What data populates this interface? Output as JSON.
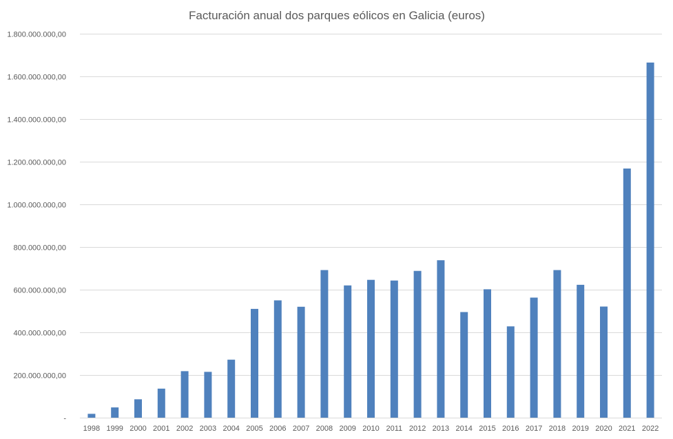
{
  "chart_data": {
    "type": "bar",
    "title": "Facturación anual dos parques eólicos en Galicia (euros)",
    "xlabel": "",
    "ylabel": "",
    "ylim": [
      0,
      1800000000
    ],
    "yticks": [
      0,
      200000000,
      400000000,
      600000000,
      800000000,
      1000000000,
      1200000000,
      1400000000,
      1600000000,
      1800000000
    ],
    "ytick_labels": [
      "-",
      "200.000.000,00",
      "400.000.000,00",
      "600.000.000,00",
      "800.000.000,00",
      "1.000.000.000,00",
      "1.200.000.000,00",
      "1.400.000.000,00",
      "1.600.000.000,00",
      "1.800.000.000,00"
    ],
    "grid": true,
    "legend": "none",
    "bar_color": "#4f81bd",
    "categories": [
      "1998",
      "1999",
      "2000",
      "2001",
      "2002",
      "2003",
      "2004",
      "2005",
      "2006",
      "2007",
      "2008",
      "2009",
      "2010",
      "2011",
      "2012",
      "2013",
      "2014",
      "2015",
      "2016",
      "2017",
      "2018",
      "2019",
      "2020",
      "2021",
      "2022"
    ],
    "values": [
      18000000,
      48000000,
      86000000,
      136000000,
      218000000,
      215000000,
      272000000,
      510000000,
      550000000,
      520000000,
      692000000,
      620000000,
      646000000,
      643000000,
      688000000,
      738000000,
      495000000,
      602000000,
      428000000,
      563000000,
      692000000,
      623000000,
      521000000,
      1168000000,
      1665000000
    ]
  }
}
